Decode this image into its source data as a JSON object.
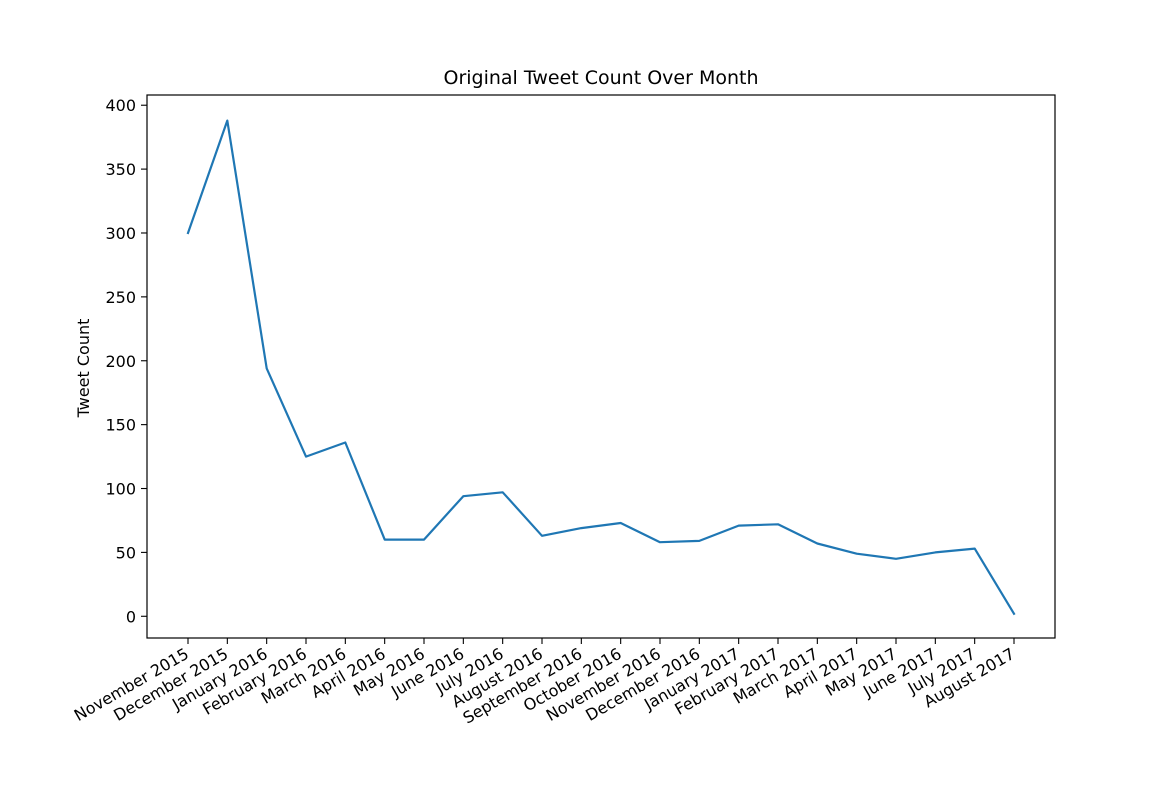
{
  "chart_data": {
    "type": "line",
    "title": "Original Tweet Count Over Month",
    "xlabel": "",
    "ylabel": "Tweet Count",
    "ylim": [
      -17,
      408
    ],
    "yticks": [
      0,
      50,
      100,
      150,
      200,
      250,
      300,
      350,
      400
    ],
    "grid": false,
    "legend": "none",
    "line_color": "#1f77b4",
    "categories": [
      "November 2015",
      "December 2015",
      "January 2016",
      "February 2016",
      "March 2016",
      "April 2016",
      "May 2016",
      "June 2016",
      "July 2016",
      "August 2016",
      "September 2016",
      "October 2016",
      "November 2016",
      "December 2016",
      "January 2017",
      "February 2017",
      "March 2017",
      "April 2017",
      "May 2017",
      "June 2017",
      "July 2017",
      "August 2017"
    ],
    "series": [
      {
        "values": [
          300,
          388,
          194,
          125,
          136,
          60,
          60,
          94,
          97,
          63,
          69,
          73,
          58,
          59,
          71,
          72,
          57,
          49,
          45,
          50,
          53,
          2
        ]
      }
    ]
  }
}
